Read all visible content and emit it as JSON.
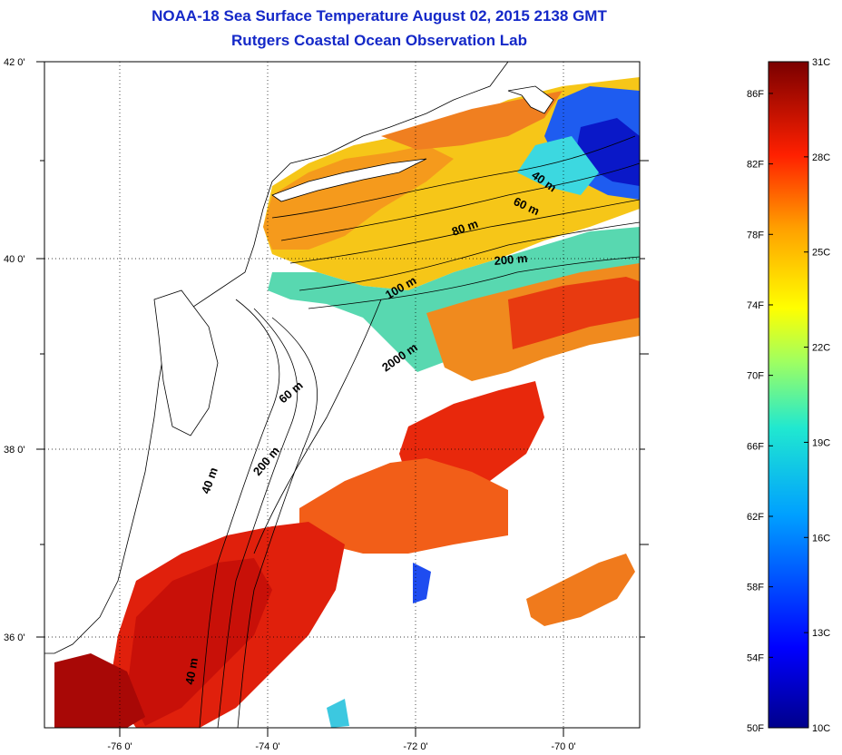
{
  "title": "NOAA-18 Sea Surface Temperature August 02, 2015 2138 GMT",
  "subtitle": "Rutgers Coastal Ocean Observation Lab",
  "map": {
    "lat_labels": [
      "42 0'",
      "40 0'",
      "38 0'",
      "36 0'"
    ],
    "lon_labels": [
      "-76 0'",
      "-74 0'",
      "-72 0'",
      "-70 0'"
    ],
    "grid": true
  },
  "contours": {
    "c40a": "40 m",
    "c60a": "60 m",
    "c80": "80 m",
    "c200a": "200 m",
    "c100": "100 m",
    "c2000": "2000 m",
    "c60b": "60 m",
    "c200b": "200 m",
    "c40b": "40 m",
    "c40c": "40 m"
  },
  "colorbar": {
    "celsius": [
      "31C",
      "28C",
      "25C",
      "22C",
      "19C",
      "16C",
      "13C",
      "10C"
    ],
    "fahrenheit": [
      "86F",
      "82F",
      "78F",
      "74F",
      "70F",
      "66F",
      "62F",
      "58F",
      "54F",
      "50F"
    ],
    "min_c": 10,
    "max_c": 31
  },
  "colors": {
    "title": "#1428c8",
    "land": "#ffffff",
    "no_data": "#ffffff"
  }
}
